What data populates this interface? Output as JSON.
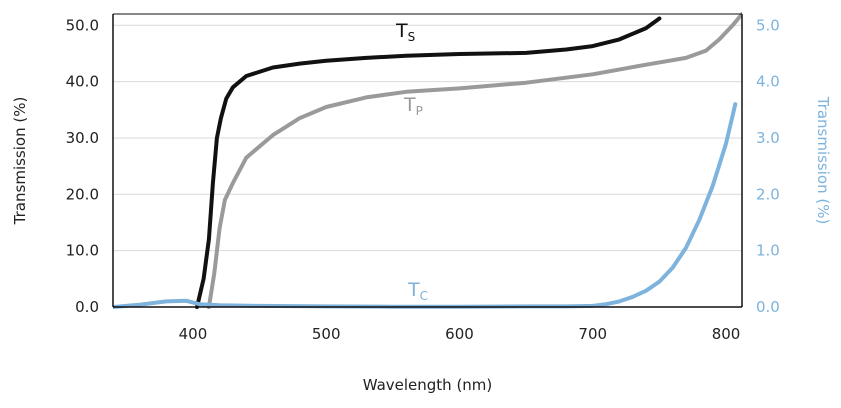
{
  "chart_data": {
    "type": "line",
    "xlabel": "Wavelength (nm)",
    "ylabel_left": "Transmission (%)",
    "ylabel_right": "Transmission (%)",
    "xlim": [
      340,
      812
    ],
    "ylim_left": [
      0,
      52
    ],
    "ylim_right": [
      0,
      5.2
    ],
    "x_ticks": [
      "400",
      "500",
      "600",
      "700",
      "800"
    ],
    "x_tick_values": [
      400,
      500,
      600,
      700,
      800
    ],
    "y_left_ticks": [
      "0.0",
      "10.0",
      "20.0",
      "30.0",
      "40.0",
      "50.0"
    ],
    "y_left_tick_values": [
      0,
      10,
      20,
      30,
      40,
      50
    ],
    "y_right_ticks": [
      "0.0",
      "1.0",
      "2.0",
      "3.0",
      "4.0",
      "5.0"
    ],
    "y_right_tick_values": [
      0,
      1,
      2,
      3,
      4,
      5
    ],
    "grid": true,
    "series": [
      {
        "name": "T",
        "subscript": "S",
        "axis": "left",
        "color": "#111111",
        "x": [
          403,
          408,
          412,
          415,
          418,
          421,
          425,
          430,
          440,
          460,
          480,
          500,
          530,
          560,
          600,
          650,
          680,
          700,
          720,
          740,
          750
        ],
        "y": [
          0,
          5,
          12,
          22,
          30,
          33.5,
          37,
          39,
          41,
          42.5,
          43.2,
          43.7,
          44.2,
          44.6,
          44.9,
          45.1,
          45.7,
          46.3,
          47.5,
          49.5,
          51.2
        ]
      },
      {
        "name": "T",
        "subscript": "P",
        "axis": "left",
        "color": "#9a9a9a",
        "x": [
          412,
          416,
          420,
          424,
          430,
          440,
          460,
          480,
          500,
          530,
          560,
          600,
          650,
          700,
          740,
          770,
          785,
          795,
          805,
          812
        ],
        "y": [
          0,
          6,
          14,
          19,
          22,
          26.5,
          30.5,
          33.5,
          35.5,
          37.2,
          38.2,
          38.8,
          39.8,
          41.3,
          43,
          44.2,
          45.5,
          47.5,
          50,
          52
        ]
      },
      {
        "name": "T",
        "subscript": "C",
        "axis": "right",
        "color": "#7db3dc",
        "x": [
          340,
          360,
          380,
          395,
          405,
          420,
          450,
          500,
          550,
          600,
          650,
          680,
          700,
          710,
          720,
          730,
          740,
          750,
          760,
          770,
          780,
          790,
          800,
          807
        ],
        "y": [
          0,
          0.04,
          0.1,
          0.11,
          0.05,
          0.03,
          0.02,
          0.01,
          0.005,
          0.005,
          0.01,
          0.01,
          0.02,
          0.05,
          0.1,
          0.18,
          0.29,
          0.45,
          0.7,
          1.05,
          1.55,
          2.15,
          2.9,
          3.6
        ]
      }
    ]
  }
}
